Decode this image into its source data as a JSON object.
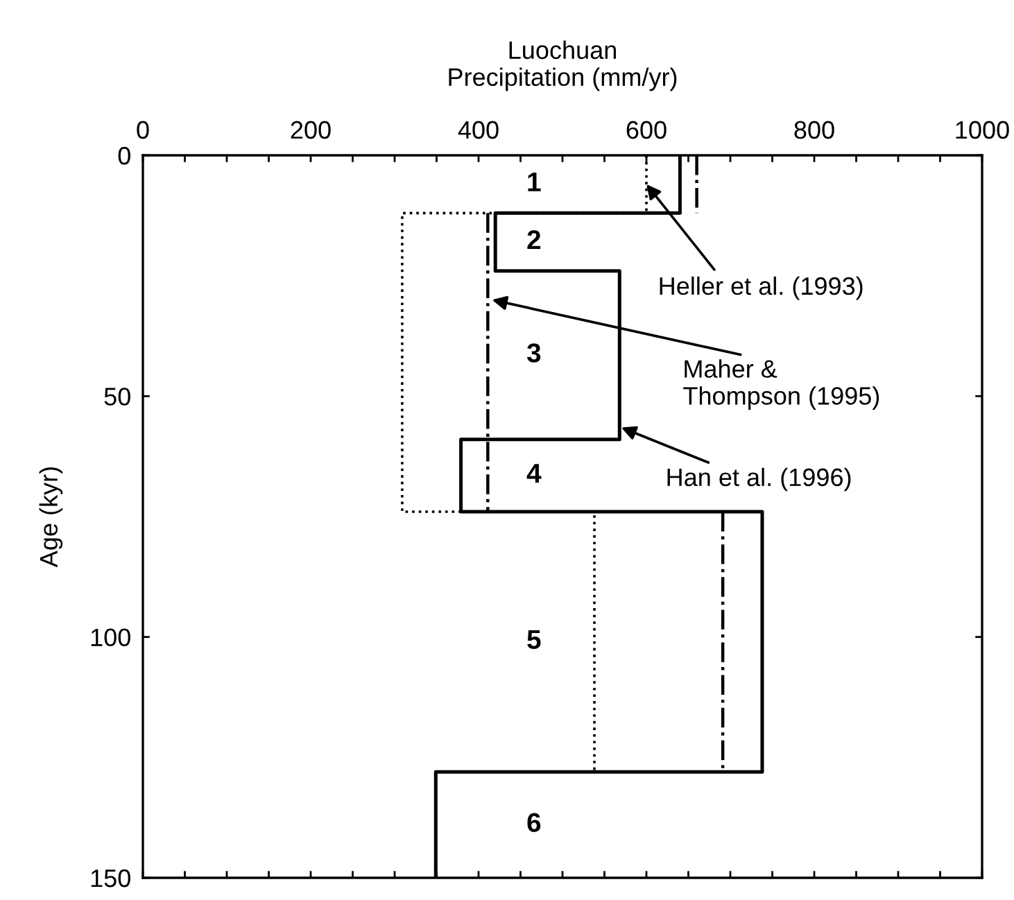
{
  "chart_data": {
    "type": "line",
    "xlabel": "Luochuan\nPrecipitation (mm/yr)",
    "ylabel": "Age (kyr)",
    "xlim": [
      0,
      1000
    ],
    "ylim": [
      150,
      0
    ],
    "xticks": [
      0,
      {
        "value": 50,
        "label": null
      },
      {
        "value": 100,
        "label": null
      },
      {
        "value": 150,
        "label": null
      },
      200,
      {
        "value": 250,
        "label": null
      },
      {
        "value": 300,
        "label": null
      },
      {
        "value": 350,
        "label": null
      },
      400,
      {
        "value": 450,
        "label": null
      },
      {
        "value": 500,
        "label": null
      },
      {
        "value": 550,
        "label": null
      },
      600,
      {
        "value": 650,
        "label": null
      },
      {
        "value": 700,
        "label": null
      },
      {
        "value": 750,
        "label": null
      },
      800,
      {
        "value": 850,
        "label": null
      },
      {
        "value": 900,
        "label": null
      },
      {
        "value": 950,
        "label": null
      },
      1000
    ],
    "yticks": [
      0,
      50,
      100,
      150
    ],
    "grid": false,
    "legend": false,
    "marker": "none",
    "series": [
      {
        "color": "#000000",
        "line_style": "solid",
        "x": [
          640,
          640,
          420,
          420,
          568,
          568,
          379,
          379,
          738,
          738,
          349,
          349
        ],
        "values": [
          0,
          12,
          12,
          24,
          24,
          59,
          59,
          74,
          74,
          128,
          128,
          150
        ]
      },
      {
        "color": "#000000",
        "line_style": "dashdot",
        "x": [
          660,
          660,
          null,
          411,
          411,
          null,
          691,
          691
        ],
        "values": [
          0,
          12,
          null,
          12,
          74,
          null,
          74,
          128
        ]
      },
      {
        "color": "#000000",
        "line_style": "dotted",
        "x": [
          600,
          600,
          309,
          309,
          538,
          538
        ],
        "values": [
          0,
          12,
          12,
          74,
          74,
          128
        ]
      }
    ],
    "annotations": [
      {
        "text": "Heller et al. (1993)",
        "x": 600,
        "y": 6
      },
      {
        "text": "Maher &\nThompson (1995)",
        "x": 416,
        "y": 30
      },
      {
        "text": "Han et al. (1996)",
        "x": 570,
        "y": 56.5
      },
      "1",
      "2",
      "3",
      "4",
      "5",
      "6"
    ]
  }
}
